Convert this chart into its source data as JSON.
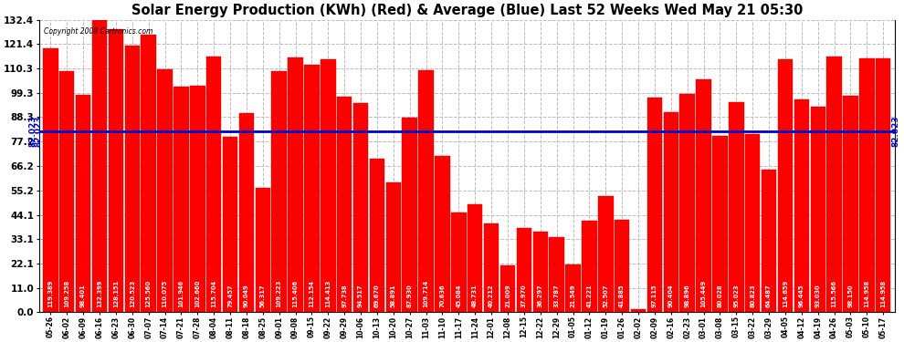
{
  "title": "Solar Energy Production (KWh) (Red) & Average (Blue) Last 52 Weeks Wed May 21 05:30",
  "copyright": "Copyright 2008 Cartronics.com",
  "average": 82.023,
  "ylim": [
    0.0,
    132.4
  ],
  "yticks": [
    0.0,
    11.0,
    22.1,
    33.1,
    44.1,
    55.2,
    66.2,
    77.2,
    88.3,
    99.3,
    110.3,
    121.4,
    132.4
  ],
  "bar_color": "#ff0000",
  "avg_line_color": "#0000cc",
  "background_color": "#ffffff",
  "grid_color": "#bbbbbb",
  "labels": [
    "05-26",
    "06-02",
    "06-09",
    "06-16",
    "06-23",
    "06-30",
    "07-07",
    "07-14",
    "07-21",
    "07-28",
    "08-04",
    "08-11",
    "08-18",
    "08-25",
    "09-01",
    "09-08",
    "09-15",
    "09-22",
    "09-29",
    "10-06",
    "10-13",
    "10-20",
    "10-27",
    "11-03",
    "11-10",
    "11-17",
    "11-24",
    "12-01",
    "12-08",
    "12-15",
    "12-22",
    "12-29",
    "01-05",
    "01-12",
    "01-19",
    "01-26",
    "02-02",
    "02-09",
    "02-16",
    "02-23",
    "03-01",
    "03-08",
    "03-15",
    "03-22",
    "03-29",
    "04-05",
    "04-12",
    "04-19",
    "04-26",
    "05-03",
    "05-10",
    "05-17"
  ],
  "values": [
    119.389,
    109.258,
    98.401,
    132.399,
    128.151,
    120.523,
    125.56,
    110.075,
    101.946,
    102.66,
    115.704,
    79.457,
    90.049,
    56.317,
    109.223,
    115.406,
    112.154,
    114.413,
    97.738,
    94.517,
    69.67,
    58.891,
    87.93,
    109.714,
    70.636,
    45.084,
    48.731,
    40.212,
    21.009,
    37.97,
    36.297,
    33.787,
    21.549,
    41.221,
    52.507,
    41.885,
    1.413,
    97.115,
    90.404,
    98.896,
    105.449,
    80.028,
    95.023,
    80.823,
    64.487,
    114.659,
    96.445,
    93.03,
    115.566,
    98.15,
    114.958,
    114.958
  ],
  "avg_label": "82.023",
  "label_fontsize": 4.8,
  "tick_fontsize": 5.5,
  "ytick_fontsize": 7.5,
  "title_fontsize": 10.5,
  "bar_width": 0.92
}
